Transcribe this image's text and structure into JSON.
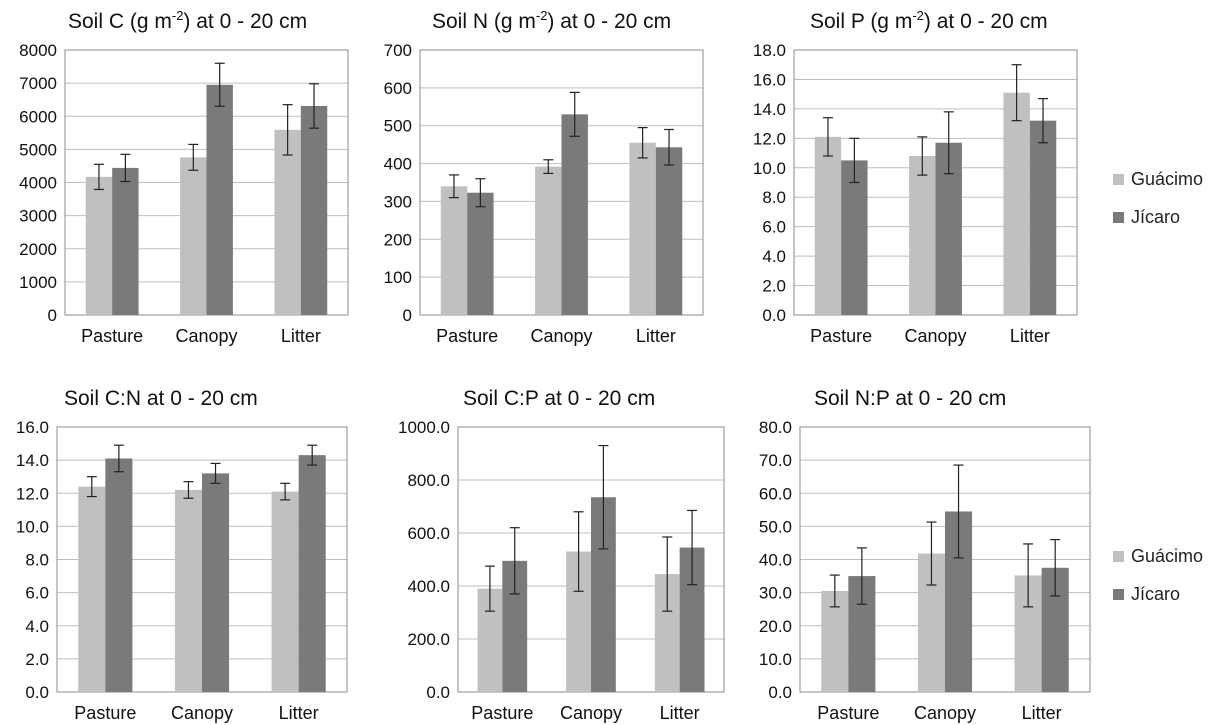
{
  "colors": {
    "guacimo": "#c0c0c0",
    "jicaro": "#7a7a7a",
    "grid": "#bfbfbf",
    "axis": "#8c8c8c",
    "error": "#222222"
  },
  "legend": {
    "items": [
      {
        "label": "Guácimo",
        "color": "#c0c0c0"
      },
      {
        "label": "Jícaro",
        "color": "#7a7a7a"
      }
    ]
  },
  "chart_data": [
    {
      "type": "bar",
      "title": "Soil C (g m⁻²) at 0 - 20 cm",
      "title_parts": {
        "before": "Soil C (g m",
        "sup": "-2",
        "after": ") at 0 - 20 cm"
      },
      "categories": [
        "Pasture",
        "Canopy",
        "Litter"
      ],
      "ylim": [
        0,
        8000
      ],
      "ytick_step": 1000,
      "ytick_labels": [
        "0",
        "1000",
        "2000",
        "3000",
        "4000",
        "5000",
        "6000",
        "7000",
        "8000"
      ],
      "series": [
        {
          "name": "Guácimo",
          "values": [
            4170,
            4760,
            5590
          ],
          "errors": [
            380,
            390,
            760
          ]
        },
        {
          "name": "Jícaro",
          "values": [
            4440,
            6950,
            6310
          ],
          "errors": [
            410,
            650,
            670
          ]
        }
      ]
    },
    {
      "type": "bar",
      "title": "Soil N (g m⁻²) at 0 - 20 cm",
      "title_parts": {
        "before": "Soil N (g m",
        "sup": "-2",
        "after": ") at 0 - 20 cm"
      },
      "categories": [
        "Pasture",
        "Canopy",
        "Litter"
      ],
      "ylim": [
        0,
        700
      ],
      "ytick_step": 100,
      "ytick_labels": [
        "0",
        "100",
        "200",
        "300",
        "400",
        "500",
        "600",
        "700"
      ],
      "series": [
        {
          "name": "Guácimo",
          "values": [
            340,
            392,
            455
          ],
          "errors": [
            30,
            18,
            40
          ]
        },
        {
          "name": "Jícaro",
          "values": [
            323,
            530,
            443
          ],
          "errors": [
            37,
            58,
            47
          ]
        }
      ]
    },
    {
      "type": "bar",
      "title": "Soil P (g m⁻²) at 0 - 20 cm",
      "title_parts": {
        "before": "Soil P (g m",
        "sup": "-2",
        "after": ") at 0 - 20 cm"
      },
      "categories": [
        "Pasture",
        "Canopy",
        "Litter"
      ],
      "ylim": [
        0,
        18
      ],
      "ytick_step": 2,
      "ytick_labels": [
        "0.0",
        "2.0",
        "4.0",
        "6.0",
        "8.0",
        "10.0",
        "12.0",
        "14.0",
        "16.0",
        "18.0"
      ],
      "series": [
        {
          "name": "Guácimo",
          "values": [
            12.1,
            10.8,
            15.1
          ],
          "errors": [
            1.3,
            1.3,
            1.9
          ]
        },
        {
          "name": "Jícaro",
          "values": [
            10.5,
            11.7,
            13.2
          ],
          "errors": [
            1.5,
            2.1,
            1.5
          ]
        }
      ]
    },
    {
      "type": "bar",
      "title": "Soil C:N at 0 - 20 cm",
      "categories": [
        "Pasture",
        "Canopy",
        "Litter"
      ],
      "ylim": [
        0,
        16
      ],
      "ytick_step": 2,
      "ytick_labels": [
        "0.0",
        "2.0",
        "4.0",
        "6.0",
        "8.0",
        "10.0",
        "12.0",
        "14.0",
        "16.0"
      ],
      "series": [
        {
          "name": "Guácimo",
          "values": [
            12.4,
            12.2,
            12.1
          ],
          "errors": [
            0.6,
            0.5,
            0.5
          ]
        },
        {
          "name": "Jícaro",
          "values": [
            14.1,
            13.2,
            14.3
          ],
          "errors": [
            0.8,
            0.6,
            0.6
          ]
        }
      ]
    },
    {
      "type": "bar",
      "title": "Soil C:P at 0 - 20 cm",
      "categories": [
        "Pasture",
        "Canopy",
        "Litter"
      ],
      "ylim": [
        0,
        1000
      ],
      "ytick_step": 200,
      "ytick_labels": [
        "0.0",
        "200.0",
        "400.0",
        "600.0",
        "800.0",
        "1000.0"
      ],
      "series": [
        {
          "name": "Guácimo",
          "values": [
            390,
            530,
            445
          ],
          "errors": [
            85,
            150,
            140
          ]
        },
        {
          "name": "Jícaro",
          "values": [
            495,
            735,
            545
          ],
          "errors": [
            125,
            195,
            140
          ]
        }
      ]
    },
    {
      "type": "bar",
      "title": "Soil N:P at 0 - 20 cm",
      "categories": [
        "Pasture",
        "Canopy",
        "Litter"
      ],
      "ylim": [
        0,
        80
      ],
      "ytick_step": 10,
      "ytick_labels": [
        "0.0",
        "10.0",
        "20.0",
        "30.0",
        "40.0",
        "50.0",
        "60.0",
        "70.0",
        "80.0"
      ],
      "series": [
        {
          "name": "Guácimo",
          "values": [
            30.5,
            41.8,
            35.2
          ],
          "errors": [
            4.8,
            9.5,
            9.5
          ]
        },
        {
          "name": "Jícaro",
          "values": [
            35.0,
            54.5,
            37.5
          ],
          "errors": [
            8.5,
            14.0,
            8.5
          ]
        }
      ]
    }
  ]
}
